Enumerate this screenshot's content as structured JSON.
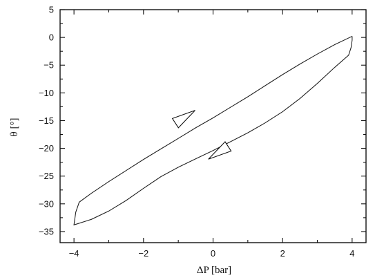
{
  "chart_data": {
    "type": "line",
    "title": "",
    "xlabel": "ΔP [bar]",
    "ylabel": "θ [°]",
    "xlim": [
      -4.4,
      4.4
    ],
    "ylim": [
      -37,
      5
    ],
    "xticks": [
      -4,
      -2,
      0,
      2,
      4
    ],
    "yticks": [
      5,
      0,
      -5,
      -10,
      -15,
      -20,
      -25,
      -30,
      -35
    ],
    "grid": false,
    "legend": "none",
    "series": [
      {
        "x": [
          4.0,
          3.5,
          3.0,
          2.5,
          2.0,
          1.5,
          1.0,
          0.5,
          0.0,
          -0.5,
          -1.0,
          -1.5,
          -2.0,
          -2.5,
          -3.0,
          -3.5,
          -3.85,
          -3.95,
          -4.0,
          -3.5,
          -3.0,
          -2.5,
          -2.0,
          -1.5,
          -1.0,
          -0.5,
          0.0,
          0.5,
          1.0,
          1.5,
          2.0,
          2.5,
          3.0,
          3.5,
          3.9,
          3.97,
          4.0,
          4.0
        ],
        "y": [
          0.2,
          -1.3,
          -3.0,
          -4.8,
          -6.7,
          -8.7,
          -10.7,
          -12.6,
          -14.5,
          -16.3,
          -18.2,
          -20.1,
          -22.0,
          -24.0,
          -26.0,
          -28.1,
          -29.7,
          -31.5,
          -33.8,
          -32.8,
          -31.3,
          -29.4,
          -27.2,
          -25.1,
          -23.4,
          -21.9,
          -20.4,
          -18.8,
          -17.2,
          -15.4,
          -13.4,
          -11.0,
          -8.3,
          -5.4,
          -3.2,
          -1.8,
          -0.5,
          0.2
        ]
      }
    ],
    "arrows": [
      {
        "x": -0.8,
        "y": -14.3,
        "direction": "up-right"
      },
      {
        "x": 0.15,
        "y": -20.8,
        "direction": "down-left"
      }
    ]
  }
}
